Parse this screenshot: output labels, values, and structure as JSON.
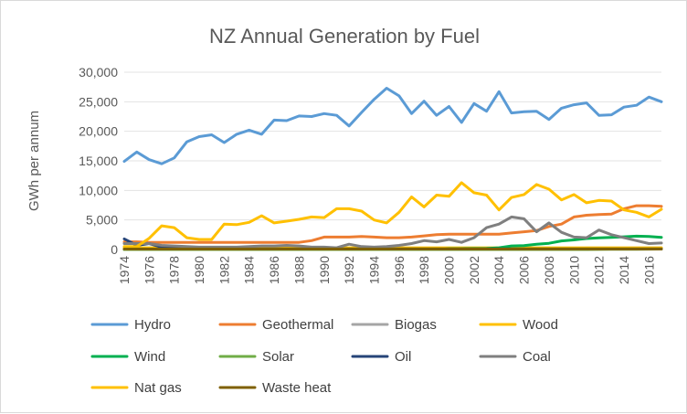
{
  "chart_data": {
    "type": "line",
    "title": "NZ Annual Generation by Fuel",
    "xlabel": "",
    "ylabel": "GWh per annum",
    "ylim": [
      0,
      30000
    ],
    "yticks": [
      "0",
      "5,000",
      "10,000",
      "15,000",
      "20,000",
      "25,000",
      "30,000"
    ],
    "ytick_values": [
      0,
      5000,
      10000,
      15000,
      20000,
      25000,
      30000
    ],
    "x": [
      1974,
      1975,
      1976,
      1977,
      1978,
      1979,
      1980,
      1981,
      1982,
      1983,
      1984,
      1985,
      1986,
      1987,
      1988,
      1989,
      1990,
      1991,
      1992,
      1993,
      1994,
      1995,
      1996,
      1997,
      1998,
      1999,
      2000,
      2001,
      2002,
      2003,
      2004,
      2005,
      2006,
      2007,
      2008,
      2009,
      2010,
      2011,
      2012,
      2013,
      2014,
      2015,
      2016,
      2017
    ],
    "xtick_labels": [
      "1974",
      "1976",
      "1978",
      "1980",
      "1982",
      "1984",
      "1986",
      "1988",
      "1990",
      "1992",
      "1994",
      "1996",
      "1998",
      "2000",
      "2002",
      "2004",
      "2006",
      "2008",
      "2010",
      "2012",
      "2014",
      "2016"
    ],
    "grid": true,
    "legend_position": "bottom",
    "series": [
      {
        "name": "Hydro",
        "color": "#5b9bd5",
        "values": [
          14900,
          16500,
          15200,
          14500,
          15500,
          18200,
          19100,
          19400,
          18100,
          19500,
          20200,
          19500,
          21900,
          21800,
          22600,
          22500,
          23000,
          22700,
          20900,
          23200,
          25400,
          27300,
          26000,
          23000,
          25100,
          22700,
          24200,
          21500,
          24700,
          23400,
          26700,
          23100,
          23300,
          23400,
          22000,
          23900,
          24500,
          24800,
          22700,
          22800,
          24100,
          24400,
          25800,
          25000
        ]
      },
      {
        "name": "Geothermal",
        "color": "#ed7d31",
        "values": [
          1300,
          1300,
          1200,
          1200,
          1200,
          1200,
          1200,
          1200,
          1200,
          1200,
          1200,
          1200,
          1200,
          1200,
          1200,
          1500,
          2100,
          2100,
          2100,
          2200,
          2100,
          2000,
          2000,
          2100,
          2300,
          2500,
          2600,
          2600,
          2600,
          2600,
          2600,
          2800,
          3000,
          3200,
          3900,
          4300,
          5500,
          5800,
          5900,
          6000,
          6900,
          7400,
          7400,
          7300
        ]
      },
      {
        "name": "Biogas",
        "color": "#a5a5a5",
        "values": [
          80,
          80,
          80,
          80,
          80,
          80,
          80,
          80,
          80,
          80,
          80,
          80,
          80,
          80,
          80,
          80,
          90,
          90,
          90,
          100,
          100,
          100,
          110,
          120,
          130,
          140,
          150,
          160,
          170,
          180,
          190,
          200,
          200,
          200,
          210,
          220,
          230,
          240,
          240,
          250,
          250,
          260,
          260,
          270
        ]
      },
      {
        "name": "Wood",
        "color": "#ffc000",
        "values": [
          300,
          300,
          300,
          300,
          300,
          300,
          300,
          300,
          300,
          300,
          300,
          300,
          300,
          300,
          300,
          300,
          300,
          300,
          300,
          300,
          300,
          300,
          300,
          300,
          300,
          300,
          300,
          300,
          300,
          300,
          300,
          300,
          300,
          300,
          300,
          300,
          300,
          300,
          300,
          300,
          300,
          300,
          300,
          300
        ]
      },
      {
        "name": "Wind",
        "color": "#00b050",
        "values": [
          0,
          0,
          0,
          0,
          0,
          0,
          0,
          0,
          0,
          0,
          0,
          0,
          0,
          0,
          0,
          0,
          0,
          0,
          0,
          0,
          0,
          0,
          0,
          0,
          0,
          0,
          120,
          130,
          150,
          170,
          300,
          600,
          650,
          900,
          1050,
          1450,
          1620,
          1850,
          1980,
          2050,
          2150,
          2250,
          2200,
          2050
        ]
      },
      {
        "name": "Solar",
        "color": "#70ad47",
        "values": [
          0,
          0,
          0,
          0,
          0,
          0,
          0,
          0,
          0,
          0,
          0,
          0,
          0,
          0,
          0,
          0,
          0,
          0,
          0,
          0,
          0,
          0,
          0,
          0,
          0,
          0,
          0,
          0,
          0,
          0,
          0,
          0,
          0,
          0,
          0,
          0,
          0,
          0,
          20,
          30,
          40,
          50,
          60,
          70
        ]
      },
      {
        "name": "Oil",
        "color": "#264478",
        "values": [
          1800,
          700,
          1000,
          400,
          300,
          150,
          100,
          100,
          100,
          100,
          100,
          100,
          100,
          100,
          100,
          100,
          100,
          100,
          100,
          100,
          100,
          100,
          100,
          100,
          100,
          100,
          100,
          100,
          100,
          100,
          100,
          100,
          100,
          100,
          100,
          100,
          100,
          100,
          100,
          100,
          100,
          100,
          100,
          100
        ]
      },
      {
        "name": "Coal",
        "color": "#7f7f7f",
        "values": [
          1000,
          1000,
          1000,
          700,
          600,
          500,
          400,
          400,
          400,
          400,
          500,
          600,
          600,
          700,
          600,
          400,
          400,
          300,
          900,
          500,
          400,
          500,
          700,
          1000,
          1500,
          1300,
          1700,
          1200,
          2000,
          3700,
          4300,
          5500,
          5200,
          3000,
          4500,
          2900,
          2100,
          2000,
          3300,
          2500,
          2000,
          1500,
          1000,
          1100
        ]
      },
      {
        "name": "Nat gas",
        "color": "#ffc000",
        "values": [
          500,
          500,
          1900,
          4000,
          3700,
          2000,
          1700,
          1700,
          4300,
          4200,
          4600,
          5700,
          4500,
          4800,
          5100,
          5500,
          5400,
          6900,
          6900,
          6500,
          5000,
          4500,
          6300,
          8900,
          7200,
          9200,
          9000,
          11300,
          9600,
          9200,
          6700,
          8800,
          9300,
          11000,
          10200,
          8400,
          9300,
          7900,
          8300,
          8200,
          6700,
          6300,
          5500,
          6800
        ]
      },
      {
        "name": "Waste heat",
        "color": "#7f6000",
        "values": [
          80,
          80,
          80,
          80,
          80,
          80,
          80,
          80,
          80,
          80,
          80,
          80,
          80,
          80,
          80,
          80,
          80,
          80,
          80,
          80,
          80,
          80,
          80,
          80,
          80,
          80,
          80,
          80,
          80,
          80,
          80,
          80,
          80,
          80,
          80,
          80,
          80,
          80,
          80,
          80,
          80,
          80,
          80,
          80
        ]
      }
    ]
  }
}
